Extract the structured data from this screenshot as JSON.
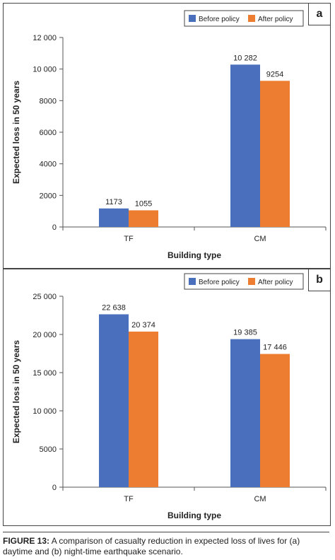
{
  "chart_data": [
    {
      "type": "bar",
      "panel_label": "a",
      "categories": [
        "TF",
        "CM"
      ],
      "series": [
        {
          "name": "Before policy",
          "color": "#4a6fbd",
          "values": [
            1173,
            10282
          ],
          "labels": [
            "1173",
            "10 282"
          ]
        },
        {
          "name": "After policy",
          "color": "#ed7d31",
          "values": [
            1055,
            9254
          ],
          "labels": [
            "1055",
            "9254"
          ]
        }
      ],
      "xlabel": "Building type",
      "ylabel": "Expected loss in 50 years",
      "ylim": [
        0,
        12000
      ],
      "yticks": [
        0,
        2000,
        4000,
        6000,
        8000,
        10000,
        12000
      ],
      "ytick_labels": [
        "0",
        "2000",
        "4000",
        "6000",
        "8000",
        "10 000",
        "12 000"
      ],
      "legend": "top-right",
      "grid": false
    },
    {
      "type": "bar",
      "panel_label": "b",
      "categories": [
        "TF",
        "CM"
      ],
      "series": [
        {
          "name": "Before policy",
          "color": "#4a6fbd",
          "values": [
            22638,
            19385
          ],
          "labels": [
            "22 638",
            "19 385"
          ]
        },
        {
          "name": "After policy",
          "color": "#ed7d31",
          "values": [
            20374,
            17446
          ],
          "labels": [
            "20 374",
            "17 446"
          ]
        }
      ],
      "xlabel": "Building type",
      "ylabel": "Expected loss in 50 years",
      "ylim": [
        0,
        25000
      ],
      "yticks": [
        0,
        5000,
        10000,
        15000,
        20000,
        25000
      ],
      "ytick_labels": [
        "0",
        "5000",
        "10 000",
        "15 000",
        "20 000",
        "25 000"
      ],
      "legend": "top-right",
      "grid": false
    }
  ],
  "caption": {
    "figure_label": "FIGURE 13:",
    "text": " A comparison of casualty reduction in expected loss of lives for (a) daytime and (b) night-time earthquake scenario."
  }
}
